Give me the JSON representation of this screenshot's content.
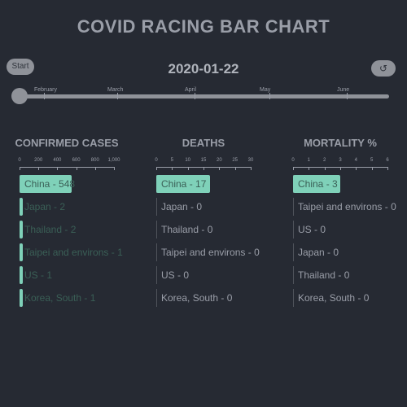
{
  "title": "COVID RACING BAR CHART",
  "date": "2020-01-22",
  "controls": {
    "start_label": "Start",
    "reset_label": "↺"
  },
  "timeline": {
    "months": [
      {
        "label": "February"
      },
      {
        "label": "March"
      },
      {
        "label": "April"
      },
      {
        "label": "May"
      },
      {
        "label": "June"
      }
    ],
    "progress": 0.0
  },
  "chart_data": [
    {
      "type": "bar",
      "title": "CONFIRMED CASES",
      "xlim": [
        0,
        1000
      ],
      "ticks": [
        "0",
        "200",
        "400",
        "600",
        "800",
        "1,000"
      ],
      "categories": [
        "China",
        "Japan",
        "Thailand",
        "Taipei and environs",
        "US",
        "Korea, South"
      ],
      "values": [
        548,
        2,
        2,
        1,
        1,
        1
      ]
    },
    {
      "type": "bar",
      "title": "DEATHS",
      "xlim": [
        0,
        30
      ],
      "ticks": [
        "0",
        "5",
        "10",
        "15",
        "20",
        "25",
        "30"
      ],
      "categories": [
        "China",
        "Japan",
        "Thailand",
        "Taipei and environs",
        "US",
        "Korea, South"
      ],
      "values": [
        17,
        0,
        0,
        0,
        0,
        0
      ]
    },
    {
      "type": "bar",
      "title": "MORTALITY %",
      "xlim": [
        0,
        6
      ],
      "ticks": [
        "0",
        "1",
        "2",
        "3",
        "4",
        "5",
        "6"
      ],
      "categories": [
        "China",
        "Taipei and environs",
        "US",
        "Japan",
        "Thailand",
        "Korea, South"
      ],
      "values": [
        3,
        0,
        0,
        0,
        0,
        0
      ]
    }
  ]
}
